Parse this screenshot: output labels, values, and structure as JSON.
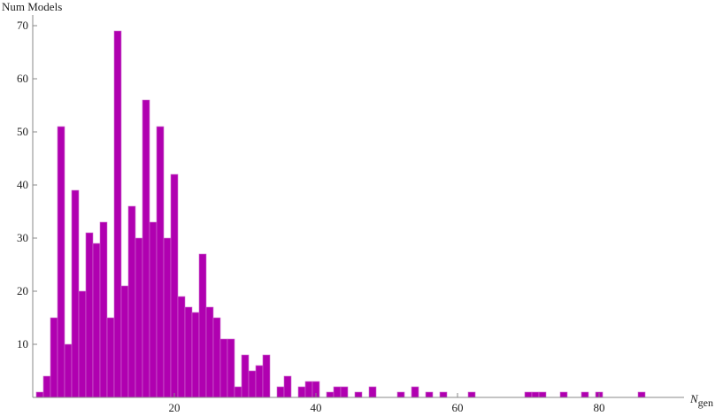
{
  "chart_data": {
    "type": "histogram",
    "ylabel": "Num Models",
    "xlabel": "N",
    "xlabel_subscript": "gen",
    "color": "#b000b0",
    "bins": [
      0.5,
      1.5,
      2.5,
      3.5,
      4.5,
      5.5,
      6.5,
      7.5,
      8.5,
      9.5,
      10.5,
      11.5,
      12.5,
      13.5,
      14.5,
      15.5,
      16.5,
      17.5,
      18.5,
      19.5,
      20.5,
      21.5,
      22.5,
      23.5,
      24.5,
      25.5,
      26.5,
      27.5,
      28.5,
      29.5,
      30.5,
      31.5,
      32.5,
      33.5,
      34.5,
      35.5,
      36.5,
      37.5,
      38.5,
      39.5,
      40.5,
      41.5,
      42.5,
      43.5,
      44.5,
      45.5,
      46.5,
      47.5,
      48.5,
      49.5,
      50.5,
      51.5,
      52.5,
      53.5,
      54.5,
      55.5,
      56.5,
      57.5,
      58.5,
      59.5,
      60.5,
      61.5,
      62.5,
      63.5,
      64.5,
      65.5,
      66.5,
      67.5,
      68.5,
      69.5,
      70.5,
      71.5,
      72.5,
      73.5,
      74.5,
      75.5,
      76.5,
      77.5,
      78.5,
      79.5,
      80.5,
      81.5,
      82.5,
      83.5,
      84.5,
      85.5,
      86.5
    ],
    "counts": [
      1,
      4,
      15,
      51,
      10,
      39,
      20,
      31,
      29,
      33,
      15,
      69,
      21,
      36,
      30,
      56,
      33,
      51,
      30,
      42,
      19,
      17,
      16,
      27,
      17,
      15,
      11,
      11,
      2,
      8,
      5,
      6,
      8,
      0,
      2,
      4,
      0,
      2,
      3,
      3,
      0,
      1,
      2,
      2,
      0,
      1,
      0,
      2,
      0,
      0,
      0,
      1,
      0,
      2,
      0,
      1,
      0,
      1,
      0,
      0,
      0,
      1,
      0,
      0,
      0,
      0,
      0,
      0,
      0,
      1,
      1,
      1,
      0,
      0,
      1,
      0,
      0,
      1,
      0,
      1,
      0,
      0,
      0,
      0,
      0,
      1
    ],
    "xlim": [
      0,
      92
    ],
    "ylim": [
      0,
      72
    ],
    "xticks": [
      20,
      40,
      60,
      80
    ],
    "yticks": [
      10,
      20,
      30,
      40,
      50,
      60,
      70
    ]
  }
}
